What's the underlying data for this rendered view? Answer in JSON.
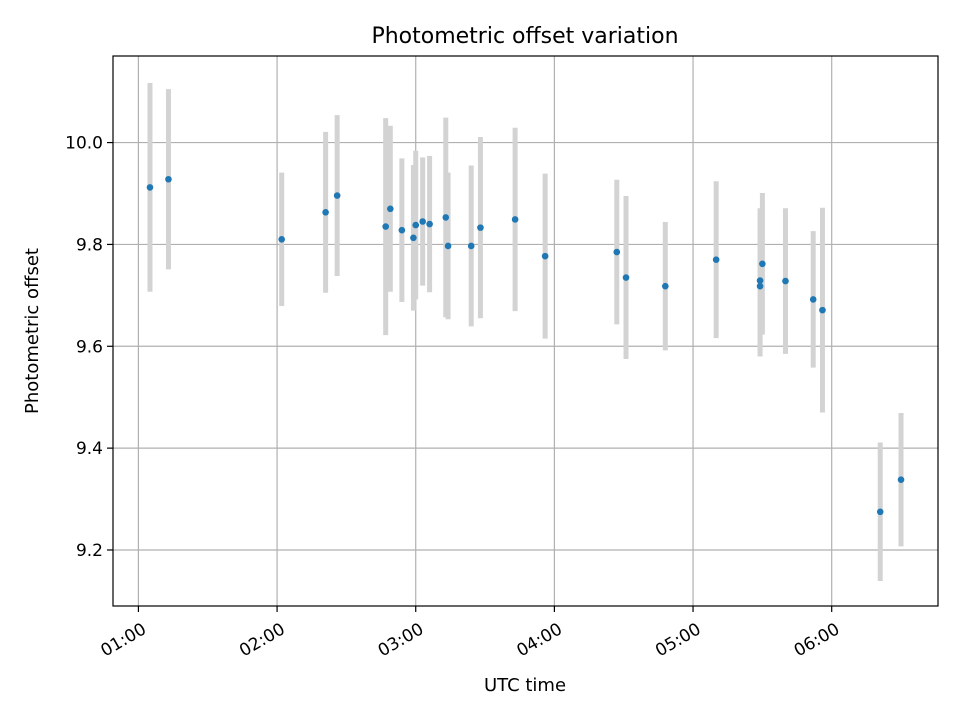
{
  "chart_data": {
    "type": "scatter",
    "title": "Photometric offset variation",
    "xlabel": "UTC time",
    "ylabel": "Photometric offset",
    "x_format": "HH:MM",
    "xlim": [
      "00:49",
      "06:46"
    ],
    "ylim": [
      9.09,
      10.17
    ],
    "x_ticks": [
      "01:00",
      "02:00",
      "03:00",
      "04:00",
      "05:00",
      "06:00"
    ],
    "y_ticks": [
      "9.2",
      "9.4",
      "9.6",
      "9.8",
      "10.0"
    ],
    "grid": true,
    "colors": {
      "points": "#1f77b4",
      "errorbars": "#d3d3d3",
      "grid": "#b0b0b0"
    },
    "series": [
      {
        "points": [
          {
            "x": "01:05",
            "y": 9.912,
            "yerr": 0.205
          },
          {
            "x": "01:13",
            "y": 9.928,
            "yerr": 0.177
          },
          {
            "x": "02:02",
            "y": 9.81,
            "yerr": 0.131
          },
          {
            "x": "02:21",
            "y": 9.863,
            "yerr": 0.158
          },
          {
            "x": "02:26",
            "y": 9.896,
            "yerr": 0.158
          },
          {
            "x": "02:47",
            "y": 9.835,
            "yerr": 0.213
          },
          {
            "x": "02:49",
            "y": 9.87,
            "yerr": 0.163
          },
          {
            "x": "02:54",
            "y": 9.828,
            "yerr": 0.141
          },
          {
            "x": "02:59",
            "y": 9.813,
            "yerr": 0.143
          },
          {
            "x": "03:00",
            "y": 9.838,
            "yerr": 0.146
          },
          {
            "x": "03:03",
            "y": 9.845,
            "yerr": 0.126
          },
          {
            "x": "03:06",
            "y": 9.84,
            "yerr": 0.134
          },
          {
            "x": "03:13",
            "y": 9.853,
            "yerr": 0.196
          },
          {
            "x": "03:14",
            "y": 9.797,
            "yerr": 0.144
          },
          {
            "x": "03:24",
            "y": 9.797,
            "yerr": 0.158
          },
          {
            "x": "03:28",
            "y": 9.833,
            "yerr": 0.178
          },
          {
            "x": "03:43",
            "y": 9.849,
            "yerr": 0.18
          },
          {
            "x": "03:56",
            "y": 9.777,
            "yerr": 0.162
          },
          {
            "x": "04:27",
            "y": 9.785,
            "yerr": 0.142
          },
          {
            "x": "04:31",
            "y": 9.735,
            "yerr": 0.16
          },
          {
            "x": "04:48",
            "y": 9.718,
            "yerr": 0.126
          },
          {
            "x": "05:10",
            "y": 9.77,
            "yerr": 0.154
          },
          {
            "x": "05:29",
            "y": 9.729,
            "yerr": 0.142
          },
          {
            "x": "05:29",
            "y": 9.718,
            "yerr": 0.138
          },
          {
            "x": "05:30",
            "y": 9.762,
            "yerr": 0.139
          },
          {
            "x": "05:40",
            "y": 9.728,
            "yerr": 0.143
          },
          {
            "x": "05:52",
            "y": 9.692,
            "yerr": 0.134
          },
          {
            "x": "05:56",
            "y": 9.671,
            "yerr": 0.201
          },
          {
            "x": "06:21",
            "y": 9.275,
            "yerr": 0.136
          },
          {
            "x": "06:30",
            "y": 9.338,
            "yerr": 0.131
          }
        ]
      }
    ]
  }
}
